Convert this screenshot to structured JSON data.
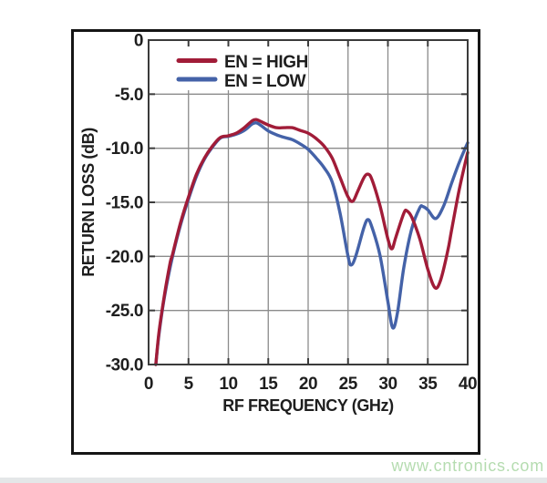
{
  "page": {
    "watermark": "www.cntronics.com",
    "watermark_color": "#b5dcb0",
    "background": "#ffffff"
  },
  "colors": {
    "grid": "#8b8b8b",
    "plot_frame": "#3b3b3b",
    "figure_border": "#151515",
    "text": "#1e1e1e",
    "series_high": "#a11c38",
    "series_low": "#4462a8",
    "legend_bg": "#ffffff"
  },
  "chart_data": {
    "type": "line",
    "title": "",
    "xlabel": "RF FREQUENCY (GHz)",
    "ylabel": "RETURN LOSS (dB)",
    "xlim": [
      0,
      40
    ],
    "ylim": [
      -30,
      0
    ],
    "x_ticks": [
      0,
      5,
      10,
      15,
      20,
      25,
      30,
      35,
      40
    ],
    "x_tick_labels": [
      "0",
      "5",
      "10",
      "15",
      "20",
      "25",
      "30",
      "35",
      "40"
    ],
    "y_ticks": [
      0,
      -5,
      -10,
      -15,
      -20,
      -25,
      -30
    ],
    "y_tick_labels": [
      "0",
      "-5.0",
      "-10.0",
      "-15.0",
      "-20.0",
      "-25.0",
      "-30.0"
    ],
    "grid": true,
    "legend_position": "top-left-inside",
    "series": [
      {
        "name": "EN = LOW",
        "color": "#4462a8",
        "x": [
          0.9,
          1.3,
          2,
          3,
          4,
          5,
          6,
          7,
          8,
          9,
          10,
          11,
          12,
          13,
          13.5,
          14,
          15,
          16,
          17,
          18,
          19,
          20,
          21,
          22,
          23,
          24,
          25,
          25.4,
          26,
          27,
          27.5,
          28,
          29,
          30,
          30.6,
          31.2,
          32,
          33,
          34,
          34.4,
          35,
          36,
          37,
          38,
          39,
          40
        ],
        "y": [
          -30,
          -27.2,
          -23.7,
          -20.0,
          -17.1,
          -14.7,
          -12.6,
          -11.0,
          -9.9,
          -9.05,
          -8.9,
          -8.7,
          -8.35,
          -7.75,
          -7.65,
          -7.85,
          -8.4,
          -8.75,
          -9.0,
          -9.2,
          -9.6,
          -10.1,
          -10.9,
          -11.8,
          -13.1,
          -16.0,
          -20.0,
          -20.8,
          -19.9,
          -17.3,
          -16.6,
          -17.3,
          -19.9,
          -24.2,
          -26.6,
          -25.2,
          -21.0,
          -17.4,
          -15.5,
          -15.4,
          -15.7,
          -16.5,
          -15.3,
          -13.2,
          -11.2,
          -9.5
        ]
      },
      {
        "name": "EN = HIGH",
        "color": "#a11c38",
        "x": [
          0.9,
          1.3,
          2,
          2.7,
          3,
          4,
          5,
          6,
          7,
          8,
          9,
          10,
          11,
          12,
          13,
          13.5,
          14,
          15,
          16,
          17,
          18,
          19,
          20,
          21,
          22,
          23,
          24,
          25,
          25.6,
          26.2,
          27,
          27.5,
          28,
          29,
          30,
          30.5,
          31,
          32,
          32.4,
          33,
          34,
          35,
          35.9,
          36.6,
          37.5,
          38,
          39,
          40
        ],
        "y": [
          -30,
          -27,
          -23.5,
          -20.6,
          -19.8,
          -16.9,
          -14.5,
          -12.4,
          -10.9,
          -9.8,
          -9.0,
          -8.85,
          -8.6,
          -8.1,
          -7.45,
          -7.35,
          -7.5,
          -7.85,
          -8.1,
          -8.1,
          -8.1,
          -8.35,
          -8.6,
          -9.1,
          -9.8,
          -10.9,
          -12.7,
          -14.5,
          -14.9,
          -14.0,
          -12.7,
          -12.4,
          -12.9,
          -15.3,
          -18.4,
          -19.3,
          -18.2,
          -16.0,
          -15.8,
          -16.4,
          -18.4,
          -21.2,
          -22.9,
          -22.2,
          -19.5,
          -17.5,
          -13.6,
          -10.4
        ]
      }
    ],
    "legend_order": [
      "EN = HIGH",
      "EN = LOW"
    ]
  }
}
